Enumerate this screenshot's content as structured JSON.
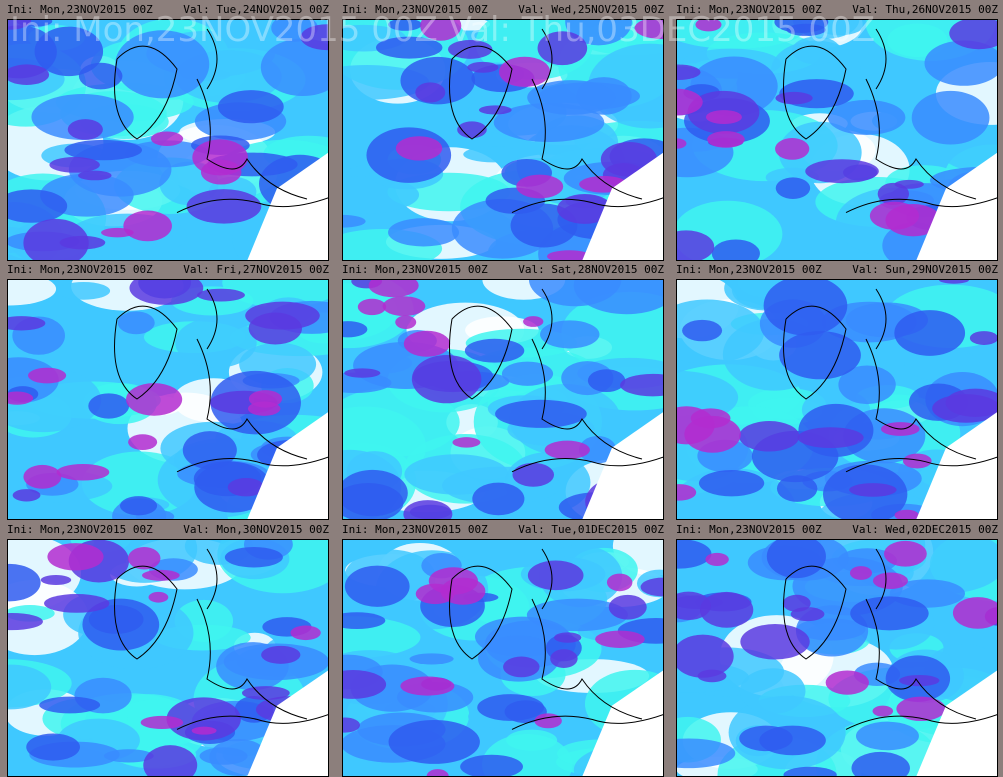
{
  "watermark": "Ini: Mon,23NOV2015 00Z  Val: Thu,03DEC2015 00Z",
  "panels": [
    {
      "ini": "Ini: Mon,23NOV2015 00Z",
      "val": "Val: Tue,24NOV2015 00Z"
    },
    {
      "ini": "Ini: Mon,23NOV2015 00Z",
      "val": "Val: Wed,25NOV2015 00Z"
    },
    {
      "ini": "Ini: Mon,23NOV2015 00Z",
      "val": "Val: Thu,26NOV2015 00Z"
    },
    {
      "ini": "Ini: Mon,23NOV2015 00Z",
      "val": "Val: Fri,27NOV2015 00Z"
    },
    {
      "ini": "Ini: Mon,23NOV2015 00Z",
      "val": "Val: Sat,28NOV2015 00Z"
    },
    {
      "ini": "Ini: Mon,23NOV2015 00Z",
      "val": "Val: Sun,29NOV2015 00Z"
    },
    {
      "ini": "Ini: Mon,23NOV2015 00Z",
      "val": "Val: Mon,30NOV2015 00Z"
    },
    {
      "ini": "Ini: Mon,23NOV2015 00Z",
      "val": "Val: Tue,01DEC2015 00Z"
    },
    {
      "ini": "Ini: Mon,23NOV2015 00Z",
      "val": "Val: Wed,02DEC2015 00Z"
    }
  ]
}
